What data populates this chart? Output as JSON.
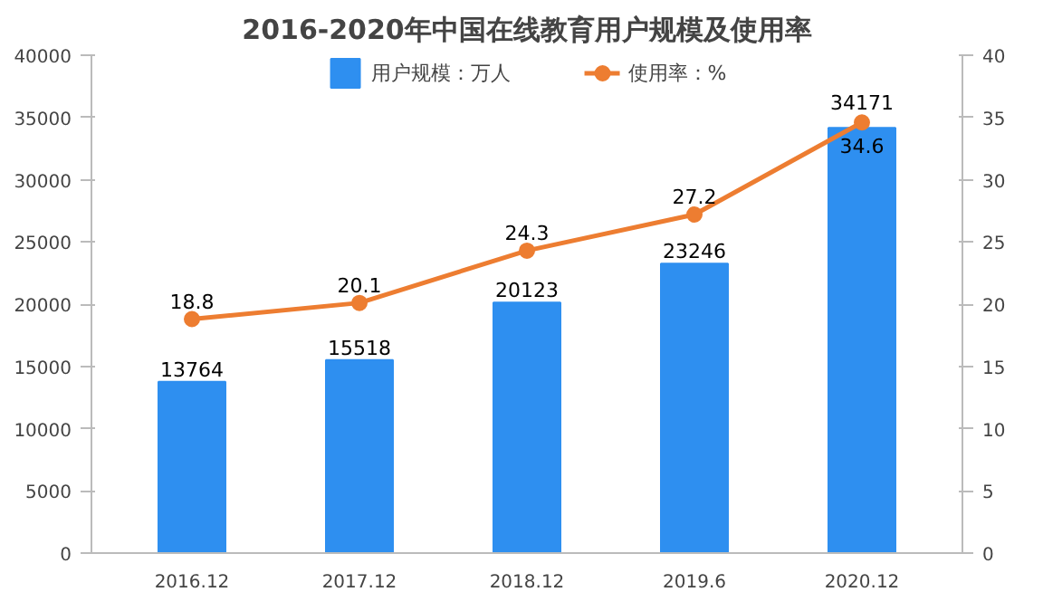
{
  "chart_data": {
    "type": "bar",
    "title": "2016-2020年中国在线教育用户规模及使用率",
    "categories": [
      "2016.12",
      "2017.12",
      "2018.12",
      "2019.6",
      "2020.12"
    ],
    "series": [
      {
        "name": "用户规模：万人",
        "color": "#2e8ff0",
        "values": [
          13764,
          15518,
          20123,
          23246,
          34171
        ]
      },
      {
        "name": "使用率：%",
        "type": "line",
        "axis": "y2",
        "color": "#ed7d31",
        "values": [
          18.8,
          20.1,
          24.3,
          27.2,
          34.6
        ],
        "marker": "circle"
      }
    ],
    "ylim": [
      0,
      40000
    ],
    "yticks": [
      0,
      5000,
      10000,
      15000,
      20000,
      25000,
      30000,
      35000,
      40000
    ],
    "y2lim": [
      0,
      40
    ],
    "y2ticks": [
      0,
      5,
      10,
      15,
      20,
      25,
      30,
      35,
      40
    ],
    "data_labels": true,
    "legend": "top",
    "grid": false
  }
}
